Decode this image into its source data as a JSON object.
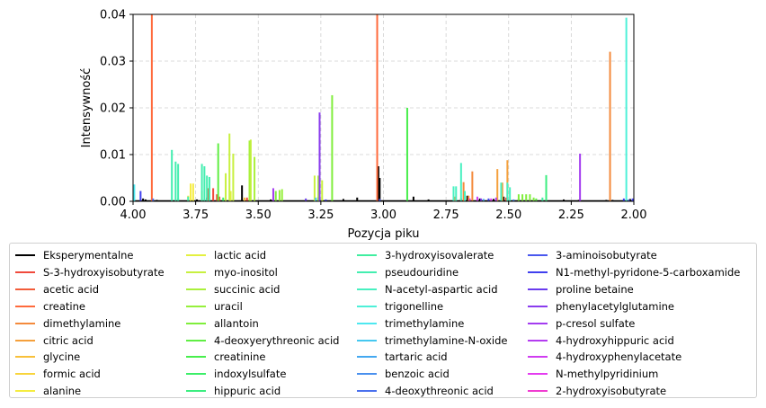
{
  "chart_data": {
    "type": "bar",
    "xlabel": "Pozycja piku",
    "ylabel": "Intensywność",
    "xlim": [
      4.0,
      2.0
    ],
    "ylim": [
      0,
      0.04
    ],
    "x_reversed": true,
    "grid": true,
    "grid_style": "dashed",
    "legend_placement": "below",
    "x_ticks": [
      "4.00",
      "3.75",
      "3.50",
      "3.25",
      "3.00",
      "2.75",
      "2.50",
      "2.25",
      "2.00"
    ],
    "y_ticks": [
      "0.00",
      "0.01",
      "0.02",
      "0.03",
      "0.04"
    ],
    "series": [
      {
        "name": "Eksperymentalne",
        "color": "#000000",
        "points": [
          [
            3.96,
            0.0006
          ],
          [
            3.95,
            0.0004
          ],
          [
            3.905,
            0.0003
          ],
          [
            3.745,
            0.0004
          ],
          [
            3.705,
            0.0008
          ],
          [
            3.565,
            0.0034
          ],
          [
            3.45,
            0.0004
          ],
          [
            3.26,
            0.0009
          ],
          [
            3.16,
            0.0005
          ],
          [
            3.105,
            0.0008
          ],
          [
            3.02,
            0.0075
          ],
          [
            3.015,
            0.005
          ],
          [
            2.88,
            0.001
          ],
          [
            2.82,
            0.0004
          ],
          [
            2.69,
            0.0006
          ],
          [
            2.665,
            0.0012
          ],
          [
            2.615,
            0.0006
          ],
          [
            2.56,
            0.0005
          ],
          [
            2.52,
            0.001
          ],
          [
            2.46,
            0.0005
          ],
          [
            2.28,
            0.0004
          ],
          [
            2.22,
            0.0003
          ],
          [
            2.11,
            0.0003
          ],
          [
            2.085,
            0.0003
          ],
          [
            2.015,
            0.0005
          ]
        ]
      },
      {
        "name": "S-3-hydroxyisobutyrate",
        "color": "#f04a3c",
        "points": [
          [
            3.68,
            0.0028
          ],
          [
            3.665,
            0.0015
          ],
          [
            3.545,
            0.0008
          ],
          [
            2.51,
            0.0008
          ]
        ]
      },
      {
        "name": "acetic acid",
        "color": "#f25c3a",
        "points": [
          [
            3.7,
            0.0028
          ],
          [
            3.655,
            0.001
          ]
        ]
      },
      {
        "name": "creatine",
        "color": "#ff6a3c",
        "points": [
          [
            3.925,
            0.04
          ],
          [
            3.025,
            0.04
          ]
        ]
      },
      {
        "name": "dimethylamine",
        "color": "#f48a3c",
        "points": [
          [
            2.715,
            0.001
          ],
          [
            2.68,
            0.0041
          ],
          [
            2.66,
            0.0012
          ],
          [
            2.645,
            0.0064
          ],
          [
            2.095,
            0.032
          ]
        ]
      },
      {
        "name": "citric acid",
        "color": "#f5a03c",
        "points": [
          [
            2.545,
            0.0069
          ],
          [
            2.525,
            0.004
          ],
          [
            2.505,
            0.0088
          ],
          [
            2.675,
            0.0014
          ]
        ]
      },
      {
        "name": "glycine",
        "color": "#f8c03a",
        "points": [
          [
            3.555,
            0.0008
          ]
        ]
      },
      {
        "name": "formic acid",
        "color": "#f8d43c",
        "points": [
          [
            3.535,
            0.0006
          ]
        ]
      },
      {
        "name": "alanine",
        "color": "#f5ec40",
        "points": [
          [
            3.78,
            0.0012
          ],
          [
            3.77,
            0.0038
          ],
          [
            3.76,
            0.0038
          ]
        ]
      },
      {
        "name": "lactic acid",
        "color": "#e4f040",
        "points": [
          [
            3.725,
            0.0022
          ],
          [
            3.61,
            0.0022
          ]
        ]
      },
      {
        "name": "myo-inositol",
        "color": "#c8f040",
        "points": [
          [
            3.63,
            0.006
          ],
          [
            3.615,
            0.0145
          ],
          [
            3.6,
            0.0102
          ],
          [
            3.53,
            0.0132
          ],
          [
            3.275,
            0.0055
          ],
          [
            3.245,
            0.0045
          ]
        ]
      },
      {
        "name": "succinic acid",
        "color": "#aaf03c",
        "points": [
          [
            3.535,
            0.013
          ],
          [
            3.515,
            0.0095
          ],
          [
            3.26,
            0.0055
          ]
        ]
      },
      {
        "name": "uracil",
        "color": "#96f03c",
        "points": [
          [
            3.415,
            0.0024
          ],
          [
            3.405,
            0.0026
          ]
        ]
      },
      {
        "name": "allantoin",
        "color": "#80ee3c",
        "points": [
          [
            3.205,
            0.0227
          ],
          [
            3.43,
            0.0022
          ],
          [
            2.46,
            0.0015
          ],
          [
            2.445,
            0.0015
          ],
          [
            2.43,
            0.0015
          ],
          [
            2.415,
            0.0015
          ],
          [
            2.4,
            0.0008
          ]
        ]
      },
      {
        "name": "4-deoxyerythreonic acid",
        "color": "#60ee44",
        "points": [
          [
            3.66,
            0.0124
          ],
          [
            2.39,
            0.0006
          ]
        ]
      },
      {
        "name": "creatinine",
        "color": "#48ee4c",
        "points": [
          [
            2.905,
            0.02
          ]
        ]
      },
      {
        "name": "indoxylsulfate",
        "color": "#3cee68",
        "points": [
          [
            3.64,
            0.0008
          ]
        ]
      },
      {
        "name": "hippuric acid",
        "color": "#3cee80",
        "points": [
          [
            3.82,
            0.0006
          ],
          [
            2.35,
            0.0056
          ]
        ]
      },
      {
        "name": "3-hydroxyisovalerate",
        "color": "#40eea0",
        "points": [
          [
            2.365,
            0.0008
          ]
        ]
      },
      {
        "name": "pseudouridine",
        "color": "#44eeb0",
        "points": [
          [
            3.845,
            0.011
          ],
          [
            3.83,
            0.0085
          ],
          [
            3.82,
            0.008
          ],
          [
            3.78,
            0.001
          ],
          [
            3.725,
            0.008
          ],
          [
            3.715,
            0.0075
          ],
          [
            3.705,
            0.0055
          ],
          [
            3.695,
            0.0052
          ]
        ]
      },
      {
        "name": "N-acetyl-aspartic acid",
        "color": "#48f0c0",
        "points": [
          [
            2.72,
            0.0032
          ],
          [
            2.71,
            0.0032
          ],
          [
            2.69,
            0.0082
          ],
          [
            2.675,
            0.0022
          ],
          [
            2.53,
            0.004
          ],
          [
            2.505,
            0.004
          ],
          [
            2.495,
            0.003
          ]
        ]
      },
      {
        "name": "trigonelline",
        "color": "#4ef0d8",
        "points": [
          [
            2.03,
            0.0393
          ]
        ]
      },
      {
        "name": "trimethylamine",
        "color": "#4ee8f0",
        "points": [
          [
            3.995,
            0.0036
          ]
        ]
      },
      {
        "name": "trimethylamine-N-oxide",
        "color": "#46c8f0",
        "points": [
          [
            3.27,
            0.0008
          ]
        ]
      },
      {
        "name": "tartaric acid",
        "color": "#44a8f0",
        "points": [
          [
            2.6,
            0.0005
          ]
        ]
      },
      {
        "name": "benzoic acid",
        "color": "#4a90ee",
        "points": [
          [
            2.48,
            0.0004
          ]
        ]
      },
      {
        "name": "4-deoxythreonic acid",
        "color": "#4a70ee",
        "points": [
          [
            3.92,
            0.0006
          ],
          [
            2.02,
            0.0004
          ]
        ]
      },
      {
        "name": "3-aminoisobutyrate",
        "color": "#4a58ee",
        "points": [
          [
            3.015,
            0.0005
          ]
        ]
      },
      {
        "name": "N1-methyl-pyridone-5-carboxamide",
        "color": "#4040ee",
        "points": [
          [
            3.97,
            0.0022
          ],
          [
            3.255,
            0.0008
          ],
          [
            3.23,
            0.0004
          ],
          [
            2.58,
            0.0006
          ],
          [
            2.04,
            0.0006
          ],
          [
            2.005,
            0.0006
          ]
        ]
      },
      {
        "name": "proline betaine",
        "color": "#6a3cee",
        "points": [
          [
            3.31,
            0.0006
          ]
        ]
      },
      {
        "name": "phenylacetylglutamine",
        "color": "#8a3cee",
        "points": [
          [
            3.255,
            0.019
          ],
          [
            2.61,
            0.0006
          ]
        ]
      },
      {
        "name": "p-cresol sulfate",
        "color": "#a43cf0",
        "points": [
          [
            3.44,
            0.0028
          ],
          [
            2.215,
            0.0102
          ]
        ]
      },
      {
        "name": "4-hydroxyhippuric acid",
        "color": "#b43cf0",
        "points": [
          [
            2.55,
            0.0008
          ]
        ]
      },
      {
        "name": "4-hydroxyphenylacetate",
        "color": "#d03cf0",
        "points": [
          [
            2.625,
            0.001
          ]
        ]
      },
      {
        "name": "N-methylpyridinium",
        "color": "#e43cf0",
        "points": [
          [
            2.57,
            0.0006
          ]
        ]
      },
      {
        "name": "2-hydroxyisobutyrate",
        "color": "#f03cd0",
        "points": [
          [
            2.655,
            0.0006
          ]
        ]
      }
    ]
  }
}
